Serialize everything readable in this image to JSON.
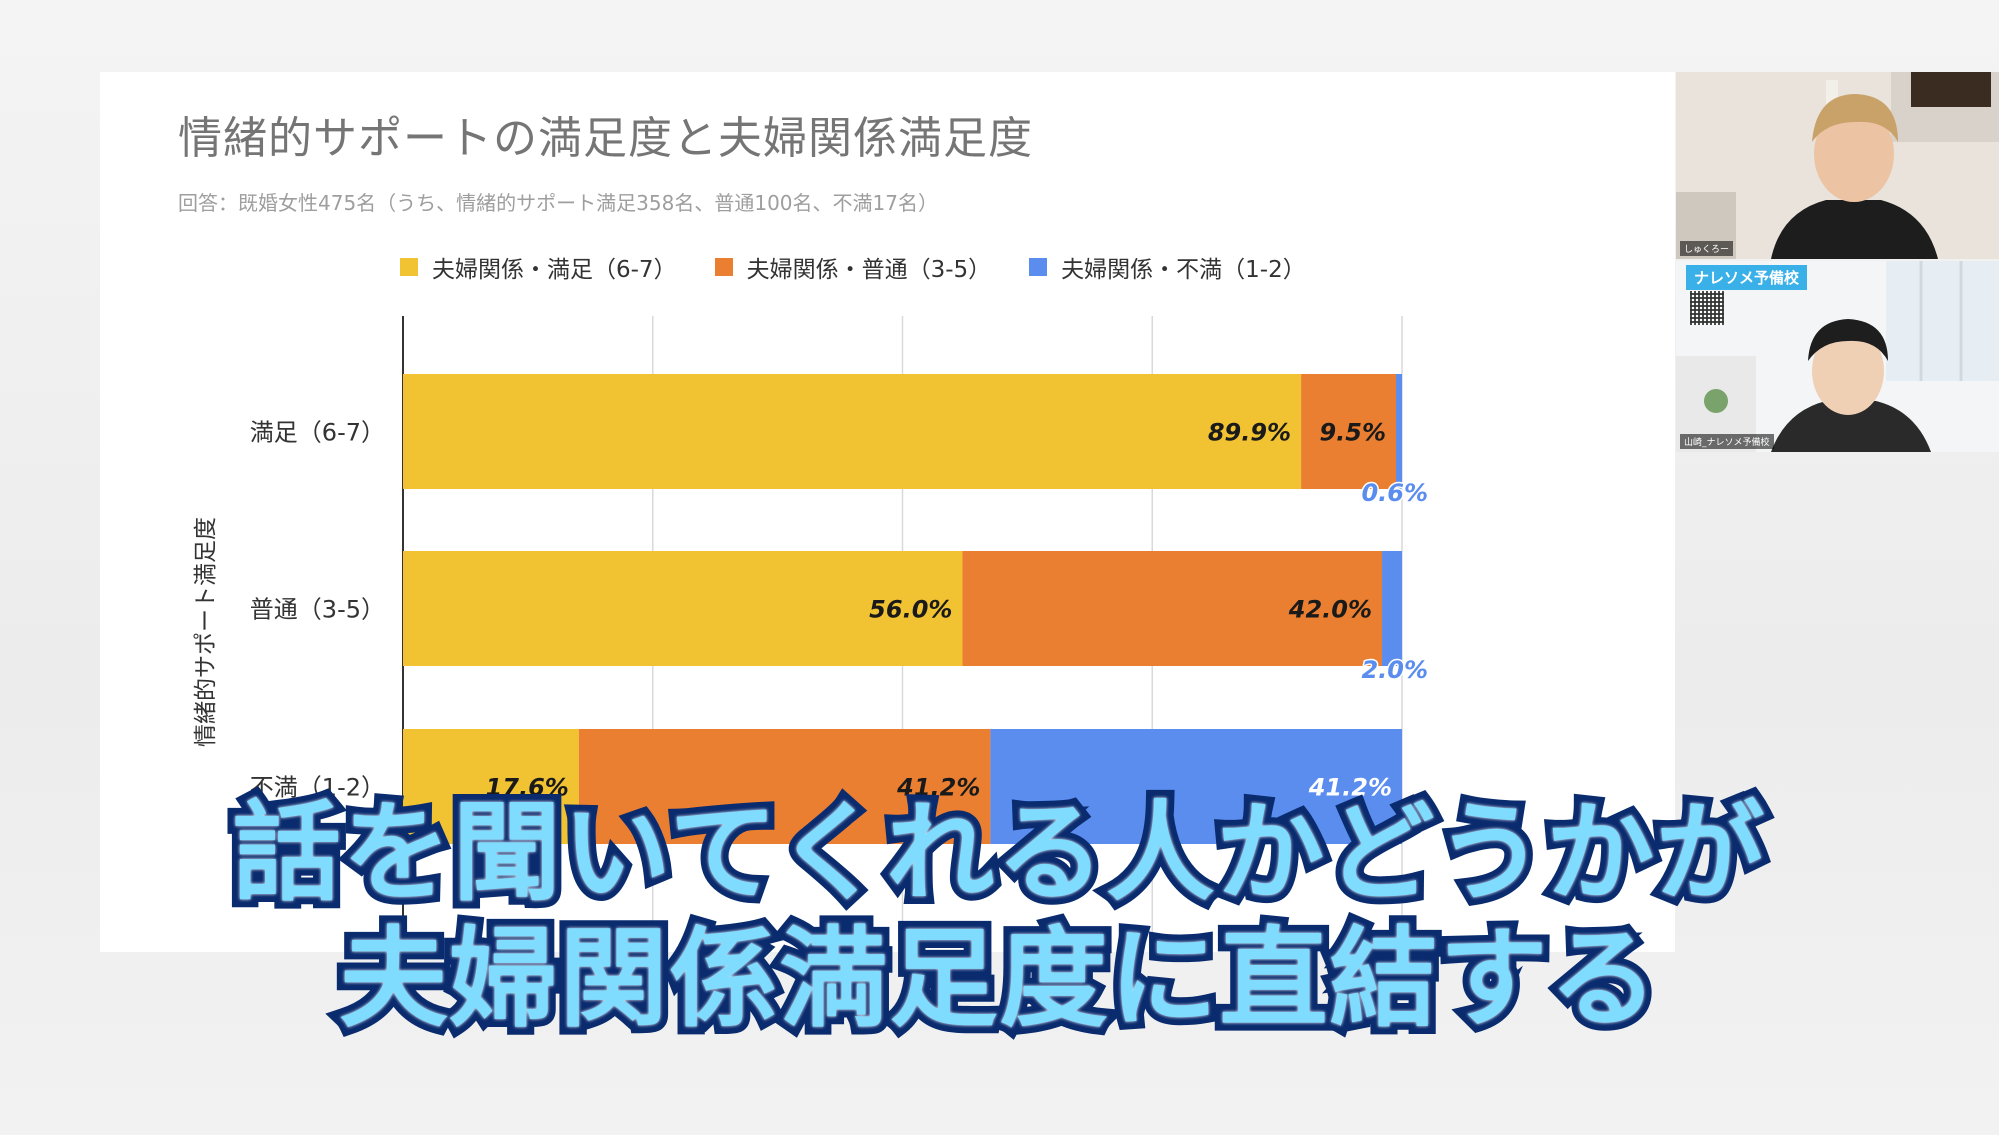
{
  "chart_data": {
    "type": "bar",
    "orientation": "horizontal",
    "stacked": true,
    "percent_stacked": true,
    "title": "情緒的サポートの満足度と夫婦関係満足度",
    "subtitle": "回答：既婚女性475名（うち、情緒的サポート満足358名、普通100名、不満17名）",
    "ylabel": "情緒的サポート満足度",
    "categories": [
      "満足（6-7）",
      "普通（3-5）",
      "不満（1-2）"
    ],
    "series": [
      {
        "name": "夫婦関係・満足（6-7）",
        "color": "#f1c232",
        "values": [
          89.9,
          56.0,
          17.6
        ],
        "labels": [
          "89.9%",
          "56.0%",
          "17.6%"
        ]
      },
      {
        "name": "夫婦関係・普通（3-5）",
        "color": "#eb7f31",
        "values": [
          9.5,
          42.0,
          41.2
        ],
        "labels": [
          "9.5%",
          "42.0%",
          "41.2%"
        ]
      },
      {
        "name": "夫婦関係・不満（1-2）",
        "color": "#5b8def",
        "values": [
          0.6,
          2.0,
          41.2
        ],
        "labels": [
          "0.6%",
          "2.0%",
          "41.2%"
        ]
      }
    ],
    "xlim": [
      0,
      100
    ],
    "grid": true,
    "legend": "top"
  },
  "video": {
    "tile_1_name": "しゅくろー",
    "tile_2_brand": "ナレソメ予備校",
    "tile_2_name": "山崎_ナレソメ予備校"
  },
  "caption": {
    "line1": "話を聞いてくれる人かどうかが",
    "line2": "夫婦関係満足度に直結する"
  }
}
